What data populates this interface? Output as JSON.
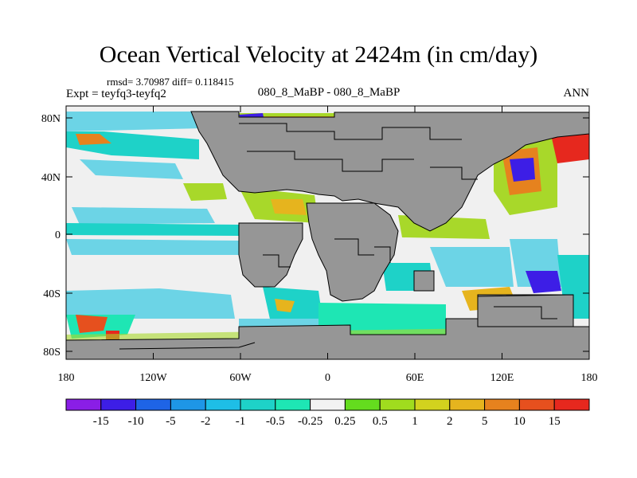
{
  "title": "Ocean Vertical Velocity at 2424m (in cm/day)",
  "stats": "rmsd= 3.70987  diff= 0.118415",
  "experiment": "Expt = teyfq3-teyfq2",
  "center_label": "080_8_MaBP - 080_8_MaBP",
  "season": "ANN",
  "lat_labels": [
    "80N",
    "40N",
    "0",
    "40S",
    "80S"
  ],
  "lon_labels": [
    "180",
    "120W",
    "60W",
    "0",
    "60E",
    "120E",
    "180"
  ],
  "colorbar": {
    "labels": [
      "-15",
      "-10",
      "-5",
      "-2",
      "-1",
      "-0.5",
      "-0.25",
      "0.25",
      "0.5",
      "1",
      "2",
      "5",
      "10",
      "15"
    ],
    "colors": [
      "#8a1ee6",
      "#3d1ee6",
      "#1e64e6",
      "#1e96e6",
      "#1ebee6",
      "#1ed2c8",
      "#1ee6b4",
      "#f2f2f2",
      "#64dc1e",
      "#a0dc1e",
      "#d2d21e",
      "#e6b41e",
      "#e6821e",
      "#e6501e",
      "#e6281e"
    ]
  },
  "colors": {
    "land": "#969696",
    "ocean_neutral": "#f0f0f0",
    "coast": "#000000"
  }
}
